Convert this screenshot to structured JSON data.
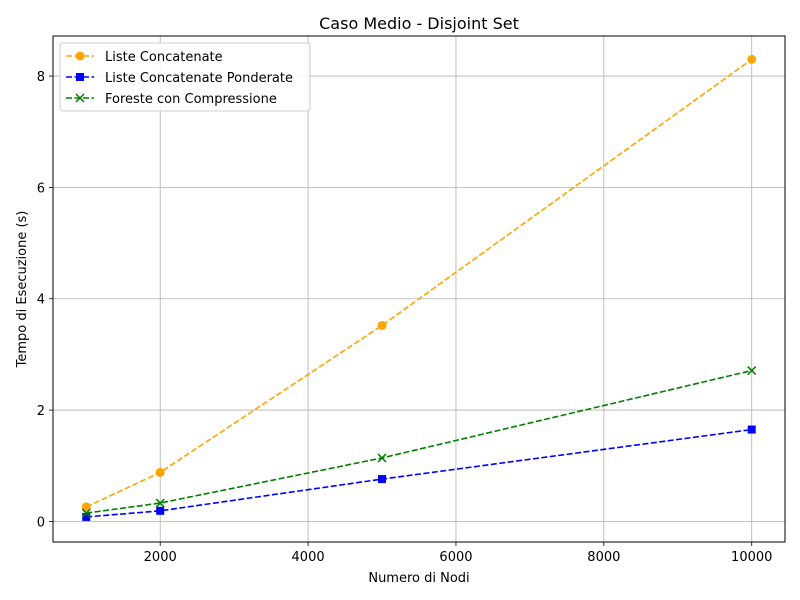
{
  "chart_data": {
    "type": "line",
    "title": "Caso Medio - Disjoint Set",
    "xlabel": "Numero di Nodi",
    "ylabel": "Tempo di Esecuzione (s)",
    "x": [
      1000,
      2000,
      5000,
      10000
    ],
    "xlim": [
      550,
      10450
    ],
    "ylim": [
      -0.37,
      8.72
    ],
    "xticks": [
      2000,
      4000,
      6000,
      8000,
      10000
    ],
    "xtick_labels": [
      "2000",
      "4000",
      "6000",
      "8000",
      "10000"
    ],
    "yticks": [
      0,
      2,
      4,
      6,
      8
    ],
    "ytick_labels": [
      "0",
      "2",
      "4",
      "6",
      "8"
    ],
    "grid": true,
    "legend_position": "top-left",
    "series": [
      {
        "name": "Liste Concatenate",
        "values": [
          0.26,
          0.88,
          3.52,
          8.3
        ],
        "color": "#ffa500",
        "marker": "circle",
        "linestyle": "dashed"
      },
      {
        "name": "Liste Concatenate Ponderate",
        "values": [
          0.08,
          0.19,
          0.76,
          1.65
        ],
        "color": "#0000ff",
        "marker": "square",
        "linestyle": "dashed"
      },
      {
        "name": "Foreste con Compressione",
        "values": [
          0.15,
          0.33,
          1.14,
          2.71
        ],
        "color": "#008000",
        "marker": "x",
        "linestyle": "dashed"
      }
    ]
  }
}
